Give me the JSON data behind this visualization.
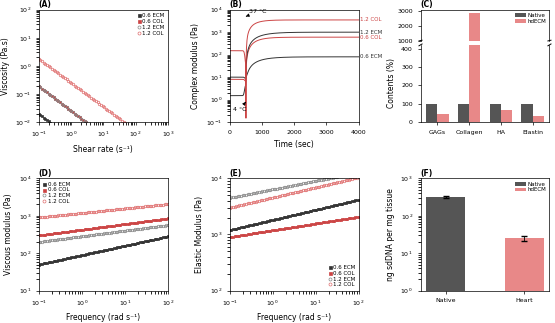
{
  "panel_A": {
    "title": "(A)",
    "xlabel": "Shear rate (s⁻¹)",
    "ylabel": "Viscosity (Pa.s)",
    "series": [
      {
        "label": "0.6 ECM",
        "color": "#333333",
        "marker": "s",
        "filled": true,
        "slope": -0.9,
        "intercept": 0.0025
      },
      {
        "label": "0.6 COL",
        "color": "#cc4444",
        "marker": "s",
        "filled": true,
        "slope": -0.88,
        "intercept": 0.025
      },
      {
        "label": "1.2 ECM",
        "color": "#888888",
        "marker": "o",
        "filled": false,
        "slope": -0.88,
        "intercept": 0.025
      },
      {
        "label": "1.2 COL",
        "color": "#e07070",
        "marker": "o",
        "filled": false,
        "slope": -0.85,
        "intercept": 0.25
      }
    ],
    "xlim": [
      0.1,
      1000
    ],
    "ylim": [
      0.01,
      100
    ]
  },
  "panel_B": {
    "title": "(B)",
    "xlabel": "Time (sec)",
    "ylabel": "Complex modulus (Pa)",
    "xlim": [
      0,
      4000
    ],
    "ylim": [
      0.1,
      10000
    ]
  },
  "panel_C": {
    "title": "(C)",
    "ylabel": "Contents (%)",
    "categories": [
      "GAGs",
      "Collagen",
      "HA",
      "Elastin"
    ],
    "native": [
      100,
      100,
      100,
      100
    ],
    "hdECM": [
      45,
      2900,
      65,
      35
    ],
    "native_color": "#555555",
    "hdECM_color": "#e88888",
    "legend": [
      "Native",
      "hdECM"
    ]
  },
  "panel_D": {
    "title": "(D)",
    "xlabel": "Frequency (rad s⁻¹)",
    "ylabel": "Viscous modulus (Pa)",
    "series": [
      {
        "label": "0.6 ECM",
        "color": "#333333",
        "marker": "s",
        "filled": true,
        "y0": 50,
        "slope": 0.25
      },
      {
        "label": "0.6 COL",
        "color": "#cc4444",
        "marker": "s",
        "filled": true,
        "y0": 300,
        "slope": 0.15
      },
      {
        "label": "1.2 ECM",
        "color": "#888888",
        "marker": "o",
        "filled": false,
        "y0": 200,
        "slope": 0.15
      },
      {
        "label": "1.2 COL",
        "color": "#e07070",
        "marker": "o",
        "filled": false,
        "y0": 900,
        "slope": 0.12
      }
    ],
    "xlim": [
      0.1,
      100
    ],
    "ylim": [
      10,
      10000
    ]
  },
  "panel_E": {
    "title": "(E)",
    "xlabel": "Frequency (rad s⁻¹)",
    "ylabel": "Elastic Modulus (Pa)",
    "series": [
      {
        "label": "0.6 ECM",
        "color": "#333333",
        "marker": "s",
        "filled": true,
        "y0": 1200,
        "slope": 0.18
      },
      {
        "label": "0.6 COL",
        "color": "#cc4444",
        "marker": "s",
        "filled": true,
        "y0": 900,
        "slope": 0.12
      },
      {
        "label": "1.2 ECM",
        "color": "#888888",
        "marker": "o",
        "filled": false,
        "y0": 4500,
        "slope": 0.15
      },
      {
        "label": "1.2 COL",
        "color": "#e07070",
        "marker": "o",
        "filled": false,
        "y0": 3000,
        "slope": 0.18
      }
    ],
    "xlim": [
      0.1,
      100
    ],
    "ylim": [
      100,
      10000
    ]
  },
  "panel_F": {
    "title": "(F)",
    "ylabel": "ng sdDNA per mg tissue",
    "categories": [
      "Native",
      "Heart"
    ],
    "values": [
      320,
      25
    ],
    "errors": [
      18,
      4
    ],
    "colors": [
      "#555555",
      "#e88888"
    ],
    "ylim": [
      1,
      1000
    ],
    "legend": [
      "Native",
      "hdECM"
    ]
  },
  "bg_color": "#ffffff",
  "font_size": 5.5
}
